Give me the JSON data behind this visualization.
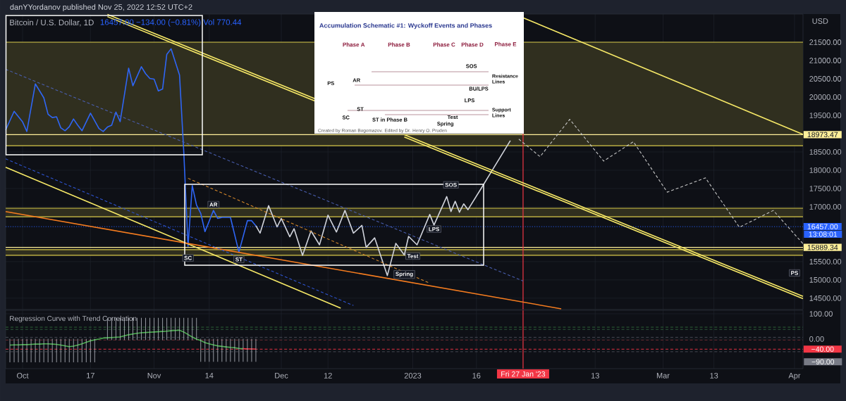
{
  "chart_data": [
    {
      "type": "line",
      "title": "Bitcoin / U.S. Dollar, 1D",
      "subtitle": "16457.00 −134.00 (−0.81%) Vol 770.44",
      "ylabel": "USD",
      "xlim": [
        "2022-09-27",
        "2023-04-03"
      ],
      "ylim": [
        14190,
        22270
      ],
      "tick_labels": "y",
      "grid": true,
      "xticks": [
        {
          "value": "2022-10-01",
          "label": null
        },
        {
          "value": "2022-10-17",
          "label": null
        },
        {
          "value": "2022-11-01",
          "label": null
        },
        {
          "value": "2022-11-14",
          "label": null
        },
        {
          "value": "2022-12-01",
          "label": null
        },
        {
          "value": "2022-12-12",
          "label": null
        },
        {
          "value": "2023-01-01",
          "label": null
        },
        {
          "value": "2023-01-16",
          "label": null
        },
        {
          "value": "2023-02-13",
          "label": null
        },
        {
          "value": "2023-03-01",
          "label": null
        },
        {
          "value": "2023-03-13",
          "label": null
        },
        {
          "value": "2023-04-01",
          "label": null
        }
      ],
      "yticks": [
        {
          "value": 14500,
          "label": "14500.00"
        },
        {
          "value": 15000,
          "label": "15000.00"
        },
        {
          "value": 15500,
          "label": "15500.00"
        },
        {
          "value": 17000,
          "label": "17000.00"
        },
        {
          "value": 17500,
          "label": "17500.00"
        },
        {
          "value": 18000,
          "label": "18000.00"
        },
        {
          "value": 18500,
          "label": "18500.00"
        },
        {
          "value": 19500,
          "label": "19500.00"
        },
        {
          "value": 20000,
          "label": "20000.00"
        },
        {
          "value": 20500,
          "label": "20500.00"
        },
        {
          "value": 21000,
          "label": "21000.00"
        },
        {
          "value": 21500,
          "label": "21500.00"
        }
      ],
      "bands": [
        {
          "axis": "y",
          "from": 18670,
          "to": 21500,
          "color": "#302f1f"
        },
        {
          "axis": "y",
          "from": 16725,
          "to": 16960,
          "color": "#302f1f"
        },
        {
          "axis": "y",
          "from": 15673,
          "to": 15827,
          "color": "#302f1f"
        }
      ],
      "ref_lines": [
        {
          "axis": "y",
          "value": 21500,
          "color": "#d8c94a"
        },
        {
          "axis": "y",
          "value": 18670,
          "color": "#d8c94a"
        },
        {
          "axis": "y",
          "value": 16960,
          "color": "#d8c94a"
        },
        {
          "axis": "y",
          "value": 16725,
          "color": "#d8c94a"
        },
        {
          "axis": "y",
          "value": 15827,
          "color": "#d8c94a"
        },
        {
          "axis": "y",
          "value": 15673,
          "color": "#d8c94a"
        },
        {
          "axis": "y",
          "value": 18973.47,
          "label": "18973.47",
          "color": "#fff09a"
        },
        {
          "axis": "y",
          "value": 15889.34,
          "label": "15889.34",
          "color": "#fff09a"
        },
        {
          "axis": "y",
          "value": 16457,
          "label": "16457.00",
          "color": "#2962ff",
          "line_style": "dotted"
        },
        {
          "axis": "x",
          "value": "2023-01-27",
          "color": "#f23645"
        }
      ],
      "series": [
        {
          "color": "#2f66f5",
          "x": [
            "2022-09-27",
            "2022-09-29",
            "2022-10-01",
            "2022-10-02",
            "2022-10-04",
            "2022-10-06",
            "2022-10-07",
            "2022-10-08",
            "2022-10-09",
            "2022-10-10",
            "2022-10-11",
            "2022-10-12",
            "2022-10-13",
            "2022-10-14",
            "2022-10-15",
            "2022-10-17",
            "2022-10-19",
            "2022-10-20",
            "2022-10-21",
            "2022-10-22",
            "2022-10-23",
            "2022-10-24",
            "2022-10-26",
            "2022-10-27",
            "2022-10-29",
            "2022-10-30",
            "2022-10-31",
            "2022-11-01",
            "2022-11-02",
            "2022-11-03",
            "2022-11-04",
            "2022-11-05",
            "2022-11-06",
            "2022-11-07",
            "2022-11-08",
            "2022-11-09",
            "2022-11-10",
            "2022-11-11",
            "2022-11-12",
            "2022-11-13",
            "2022-11-15",
            "2022-11-16",
            "2022-11-17",
            "2022-11-19",
            "2022-11-21",
            "2022-11-23",
            "2022-11-24",
            "2022-11-25"
          ],
          "values": [
            19100,
            19610,
            19320,
            19060,
            20360,
            19980,
            19530,
            19440,
            19460,
            19160,
            19080,
            19190,
            19400,
            19230,
            19080,
            19560,
            19140,
            19060,
            19180,
            19230,
            19590,
            19330,
            20790,
            20310,
            20830,
            20640,
            20510,
            20490,
            20170,
            20220,
            21170,
            21320,
            20960,
            20600,
            18500,
            15920,
            17580,
            17050,
            16820,
            16320,
            16900,
            16680,
            16710,
            16710,
            15760,
            16620,
            16620,
            16480
          ]
        },
        {
          "color": "#d1d4dc",
          "x": [
            "2022-11-25",
            "2022-11-26",
            "2022-11-28",
            "2022-11-30",
            "2022-12-01",
            "2022-12-03",
            "2022-12-04",
            "2022-12-06",
            "2022-12-08",
            "2022-12-10",
            "2022-12-12",
            "2022-12-14",
            "2022-12-16",
            "2022-12-18",
            "2022-12-20",
            "2022-12-21",
            "2022-12-23",
            "2022-12-26",
            "2022-12-28",
            "2022-12-30",
            "2022-12-31",
            "2023-01-02",
            "2023-01-05",
            "2023-01-06",
            "2023-01-09",
            "2023-01-10",
            "2023-01-11",
            "2023-01-12",
            "2023-01-13",
            "2023-01-14",
            "2023-01-17",
            "2023-01-24"
          ],
          "values": [
            16480,
            16280,
            17030,
            16450,
            16680,
            16180,
            16400,
            15670,
            16340,
            15960,
            16770,
            16310,
            16900,
            16280,
            16490,
            15890,
            16150,
            15120,
            16000,
            15680,
            16190,
            15960,
            16790,
            16500,
            17280,
            16870,
            17150,
            16850,
            17080,
            16920,
            17480,
            18810
          ]
        },
        {
          "color": "#c8c8c8",
          "line_style": "dashed",
          "x": [
            "2023-01-26",
            "2023-01-31",
            "2023-02-07",
            "2023-02-15",
            "2023-02-22",
            "2023-03-02",
            "2023-03-11",
            "2023-03-19",
            "2023-03-27",
            "2023-04-03"
          ],
          "values": [
            18850,
            18370,
            19390,
            18250,
            18780,
            17400,
            17790,
            16440,
            16900,
            15990
          ]
        },
        {
          "color": "#f7e967",
          "x": [
            "2022-10-21",
            "2022-12-09",
            "2022-12-10",
            "2022-12-30",
            "2023-04-03"
          ],
          "values": [
            22260,
            19950,
            null,
            18970,
            14550
          ]
        },
        {
          "color": "#f7e967",
          "x": [
            "2022-10-21",
            "2022-12-09",
            "2022-12-10",
            "2022-12-30",
            "2023-04-03"
          ],
          "values": [
            22200,
            19890,
            null,
            18910,
            14490
          ]
        },
        {
          "color": "#f7e967",
          "x": [
            "2023-01-27",
            "2023-04-03"
          ],
          "values": [
            22170,
            18980
          ]
        },
        {
          "color": "#f7e967",
          "x": [
            "2022-09-27",
            "2022-12-15"
          ],
          "values": [
            18080,
            14230
          ]
        },
        {
          "color": "#f57c1f",
          "x": [
            "2022-09-27",
            "2023-02-05"
          ],
          "values": [
            16870,
            14210
          ]
        },
        {
          "color": "#4a5fb0",
          "line_style": "dashed",
          "x": [
            "2022-09-27",
            "2023-01-27"
          ],
          "values": [
            20760,
            14970
          ]
        },
        {
          "color": "#2f55d4",
          "line_style": "dashed",
          "x": [
            "2022-09-27",
            "2022-12-18"
          ],
          "values": [
            18310,
            14300
          ]
        },
        {
          "color": "#d98a2b",
          "line_style": "dashed",
          "x": [
            "2022-11-09",
            "2023-01-05"
          ],
          "values": [
            17780,
            14910
          ]
        }
      ],
      "annotations": [
        "danYYordanov published Nov 25, 2022 12:52 UTC+2",
        "13:08:01",
        "Accumulation Schematic #1: Wyckoff Events and Phases",
        "Phase A",
        "Phase B",
        "Phase C",
        "Phase D",
        "Phase E",
        "PS",
        "AR",
        "SC",
        "ST",
        "ST in Phase B",
        "Spring",
        "Test",
        "LPS",
        "BU/LPS",
        "SOS",
        "Resistance Lines",
        "Support Lines",
        "Created by Roman Bogomazov. Edited by Dr. Henry O. Pruden",
        {
          "text": "SC",
          "x": "2022-11-09",
          "y": 15600
        },
        {
          "text": "AR",
          "x": "2022-11-15",
          "y": 17060
        },
        {
          "text": "ST",
          "x": "2022-11-21",
          "y": 15560
        },
        {
          "text": "Spring",
          "x": "2022-12-30",
          "y": 15150
        },
        {
          "text": "Test",
          "x": "2023-01-01",
          "y": 15650
        },
        {
          "text": "LPS",
          "x": "2023-01-06",
          "y": 16390
        },
        {
          "text": "SOS",
          "x": "2023-01-10",
          "y": 17600
        },
        {
          "text": "PS",
          "x": "2023-04-01",
          "y": 15190
        }
      ]
    },
    {
      "type": "line",
      "title": "Regression Curve with Trend Correlation",
      "xlim": [
        "2022-09-27",
        "2023-04-03"
      ],
      "ylim": [
        -117,
        114
      ],
      "grid": true,
      "xticks": [
        {
          "value": "2022-10-01",
          "label": "Oct"
        },
        {
          "value": "2022-10-17",
          "label": "17"
        },
        {
          "value": "2022-11-01",
          "label": "Nov"
        },
        {
          "value": "2022-11-14",
          "label": "14"
        },
        {
          "value": "2022-12-01",
          "label": "Dec"
        },
        {
          "value": "2022-12-12",
          "label": "12"
        },
        {
          "value": "2023-01-01",
          "label": "2023"
        },
        {
          "value": "2023-01-16",
          "label": "16"
        },
        {
          "value": "2023-02-13",
          "label": "13"
        },
        {
          "value": "2023-03-01",
          "label": "Mar"
        },
        {
          "value": "2023-03-13",
          "label": "13"
        },
        {
          "value": "2023-04-01",
          "label": "Apr"
        }
      ],
      "yticks": [
        {
          "value": 100,
          "label": "100.00"
        },
        {
          "value": 0,
          "label": "0.00"
        }
      ],
      "ref_lines": [
        {
          "axis": "x",
          "value": "2023-01-27",
          "label": "Fri 27 Jan '23",
          "color": "#f23645"
        },
        {
          "axis": "y",
          "value": 47,
          "color": "#2e6b3a",
          "line_style": "dashed"
        },
        {
          "axis": "y",
          "value": 38,
          "color": "#2e5a3a",
          "line_style": "dashed"
        },
        {
          "axis": "y",
          "value": 7,
          "color": "#4a4e58",
          "line_style": "dashed"
        },
        {
          "axis": "y",
          "value": -4,
          "color": "#6b2a30",
          "line_style": "dashed"
        },
        {
          "axis": "y",
          "value": -40,
          "label": "−40.00",
          "color": "#f23645",
          "line_style": "dashed"
        },
        {
          "axis": "y",
          "value": -50,
          "color": "#4a4e58",
          "line_style": "dashed"
        }
      ],
      "series": [
        {
          "color": "#4caf50",
          "x": [
            "2022-09-28",
            "2022-09-29",
            "2022-09-30",
            "2022-10-01",
            "2022-10-02",
            "2022-10-03",
            "2022-10-04",
            "2022-10-05",
            "2022-10-06",
            "2022-10-07",
            "2022-10-08",
            "2022-10-09",
            "2022-10-10",
            "2022-10-11",
            "2022-10-12",
            "2022-10-13",
            "2022-10-14",
            "2022-10-15",
            "2022-10-16",
            "2022-10-17",
            "2022-10-18",
            "2022-10-19",
            "2022-10-20",
            "2022-10-21",
            "2022-10-22",
            "2022-10-23",
            "2022-10-24",
            "2022-10-25",
            "2022-10-26",
            "2022-10-27",
            "2022-10-28",
            "2022-10-29",
            "2022-10-30",
            "2022-10-31",
            "2022-11-01",
            "2022-11-02",
            "2022-11-03",
            "2022-11-04",
            "2022-11-05",
            "2022-11-06",
            "2022-11-07",
            "2022-11-08",
            "2022-11-09",
            "2022-11-10",
            "2022-11-11",
            "2022-11-12",
            "2022-11-13",
            "2022-11-14",
            "2022-11-15",
            "2022-11-16",
            "2022-11-17",
            "2022-11-18",
            "2022-11-19",
            "2022-11-20",
            "2022-11-21",
            "2022-11-22"
          ],
          "values": [
            -24,
            -23,
            -23,
            -22,
            -22,
            -21,
            -20,
            -20,
            -19,
            -19,
            -20,
            -21,
            -24,
            -27,
            -30,
            -28,
            -24,
            -19,
            -13,
            -7,
            -3,
            0,
            4,
            5,
            6,
            7,
            8,
            13,
            17,
            20,
            23,
            25,
            26,
            27,
            28,
            29,
            30,
            31,
            33,
            34,
            35,
            28,
            18,
            8,
            0,
            -6,
            -14,
            -19,
            -23,
            -27,
            -29,
            -31,
            -33,
            -34,
            -37,
            -38
          ],
          "errors": [
            [
              -92,
              1
            ],
            [
              -92,
              1
            ],
            [
              -92,
              1
            ],
            [
              -92,
              1
            ],
            [
              -92,
              1
            ],
            [
              -92,
              1
            ],
            [
              -92,
              1
            ],
            [
              -92,
              1
            ],
            [
              -92,
              1
            ],
            [
              -92,
              1
            ],
            [
              -92,
              1
            ],
            [
              -92,
              1
            ],
            [
              -92,
              1
            ],
            [
              -92,
              1
            ],
            [
              -92,
              1
            ],
            [
              -92,
              1
            ],
            [
              -92,
              1
            ],
            [
              -92,
              1
            ],
            [
              -92,
              1
            ],
            [
              -92,
              1
            ],
            [
              -92,
              1
            ],
            null,
            null,
            [
              -4,
              84
            ],
            [
              -4,
              84
            ],
            [
              -4,
              84
            ],
            [
              -4,
              84
            ],
            [
              -4,
              84
            ],
            [
              -4,
              84
            ],
            [
              -4,
              84
            ],
            [
              -4,
              84
            ],
            [
              -4,
              84
            ],
            [
              -4,
              84
            ],
            [
              -4,
              84
            ],
            [
              -4,
              84
            ],
            [
              -4,
              84
            ],
            [
              -4,
              84
            ],
            [
              -4,
              84
            ],
            [
              -4,
              84
            ],
            [
              -4,
              84
            ],
            [
              -4,
              84
            ],
            [
              -4,
              84
            ],
            [
              -4,
              84
            ],
            [
              -4,
              84
            ],
            [
              -4,
              84
            ],
            [
              -90,
              1
            ],
            [
              -90,
              1
            ],
            [
              -90,
              1
            ],
            [
              -90,
              1
            ],
            [
              -90,
              1
            ],
            [
              -90,
              1
            ],
            [
              -90,
              1
            ],
            [
              -90,
              1
            ],
            [
              -90,
              1
            ],
            [
              -90,
              1
            ],
            [
              -90,
              1
            ]
          ]
        },
        {
          "color": "#f23645",
          "x": [
            "2022-11-22",
            "2022-11-23",
            "2022-11-24",
            "2022-11-25"
          ],
          "values": [
            -38,
            -39,
            -39,
            -40
          ],
          "errors": [
            null,
            [
              -90,
              1
            ],
            [
              -90,
              1
            ],
            [
              -90,
              1
            ]
          ]
        }
      ],
      "annotations": [
        "−90.00"
      ]
    }
  ]
}
